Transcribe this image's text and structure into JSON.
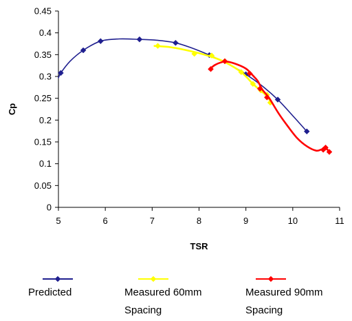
{
  "chart_data": {
    "type": "scatter",
    "title": "",
    "xlabel": "TSR",
    "ylabel": "Cp",
    "xlim": [
      5,
      11
    ],
    "ylim": [
      0,
      0.45
    ],
    "x_ticks": [
      "5",
      "6",
      "7",
      "8",
      "9",
      "10",
      "11"
    ],
    "y_ticks": [
      "0",
      "0.05",
      "0.1",
      "0.15",
      "0.2",
      "0.25",
      "0.3",
      "0.35",
      "0.4",
      "0.45"
    ],
    "grid": false,
    "legend_position": "bottom",
    "series": [
      {
        "name": "Predicted",
        "color": "#1f1f8f",
        "marker": "diamond",
        "x": [
          5.05,
          5.53,
          5.9,
          6.73,
          7.5,
          8.22,
          9.0,
          9.68,
          10.3
        ],
        "y": [
          0.308,
          0.36,
          0.381,
          0.385,
          0.377,
          0.349,
          0.305,
          0.247,
          0.174
        ],
        "curve_x": [
          5.0,
          5.05,
          5.25,
          5.53,
          5.9,
          6.3,
          6.73,
          7.1,
          7.5,
          7.85,
          8.22,
          8.6,
          9.0,
          9.35,
          9.68,
          10.0,
          10.3
        ],
        "curve_y": [
          0.297,
          0.308,
          0.335,
          0.36,
          0.381,
          0.386,
          0.385,
          0.383,
          0.377,
          0.365,
          0.349,
          0.33,
          0.305,
          0.278,
          0.247,
          0.21,
          0.174
        ]
      },
      {
        "name": "Measured 60mm Spacing",
        "color": "#ffff00",
        "marker": "diamond",
        "x": [
          7.12,
          7.9,
          8.27,
          8.55,
          8.9,
          9.15,
          9.32,
          9.45,
          9.52
        ],
        "y": [
          0.37,
          0.352,
          0.348,
          0.335,
          0.31,
          0.283,
          0.268,
          0.258,
          0.24
        ],
        "curve_x": [
          7.05,
          7.4,
          7.9,
          8.27,
          8.55,
          8.9,
          9.15,
          9.32,
          9.45,
          9.55
        ],
        "curve_y": [
          0.37,
          0.367,
          0.356,
          0.345,
          0.333,
          0.31,
          0.283,
          0.267,
          0.255,
          0.238
        ]
      },
      {
        "name": "Measured 90mm Spacing",
        "color": "#ff0000",
        "marker": "diamond",
        "x": [
          8.25,
          8.55,
          9.08,
          9.3,
          9.45,
          10.65,
          10.7,
          10.78
        ],
        "y": [
          0.317,
          0.335,
          0.307,
          0.272,
          0.252,
          0.132,
          0.137,
          0.127
        ],
        "curve_x": [
          8.22,
          8.35,
          8.55,
          8.75,
          9.0,
          9.15,
          9.25,
          9.35,
          9.5,
          9.7,
          9.9,
          10.1,
          10.3,
          10.5,
          10.62,
          10.7,
          10.78
        ],
        "curve_y": [
          0.316,
          0.327,
          0.334,
          0.33,
          0.318,
          0.302,
          0.29,
          0.27,
          0.25,
          0.215,
          0.185,
          0.158,
          0.14,
          0.13,
          0.133,
          0.136,
          0.127
        ]
      }
    ],
    "legend": [
      {
        "line1": "Predicted",
        "line2": ""
      },
      {
        "line1": "Measured 60mm",
        "line2": "Spacing"
      },
      {
        "line1": "Measured 90mm",
        "line2": "Spacing"
      }
    ]
  }
}
